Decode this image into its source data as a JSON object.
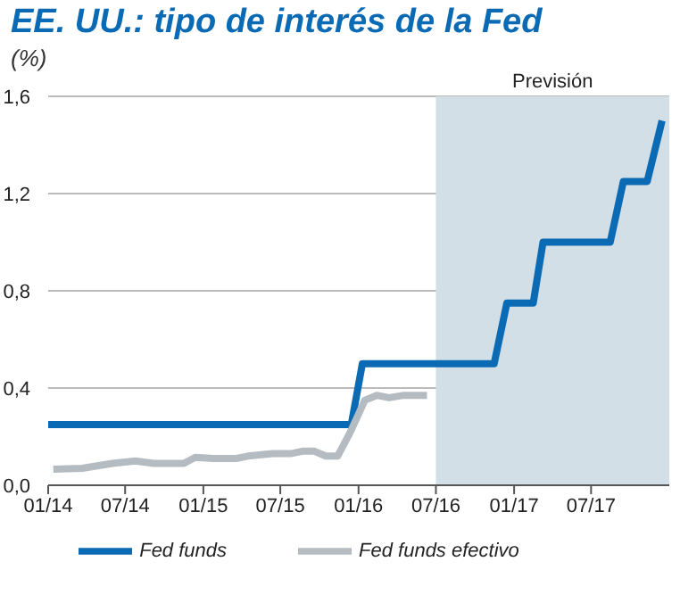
{
  "chart_data": {
    "type": "line",
    "title": "EE. UU.: tipo de interés de la Fed",
    "ylabel": "(%)",
    "xlim": [
      "2014-01",
      "2018-01"
    ],
    "xticks": [
      {
        "value": "2014-01",
        "label": "01/14"
      },
      {
        "value": "2014-07",
        "label": "07/14"
      },
      {
        "value": "2015-01",
        "label": "01/15"
      },
      {
        "value": "2015-07",
        "label": "07/15"
      },
      {
        "value": "2016-01",
        "label": "01/16"
      },
      {
        "value": "2016-07",
        "label": "07/16"
      },
      {
        "value": "2017-01",
        "label": "01/17"
      },
      {
        "value": "2017-07",
        "label": "07/17"
      }
    ],
    "ylim": [
      0,
      1.6
    ],
    "yticks": [
      {
        "value": 0,
        "label": "0,0"
      },
      {
        "value": 0.4,
        "label": "0,4"
      },
      {
        "value": 0.8,
        "label": "0,8"
      },
      {
        "value": 1.2,
        "label": "1,2"
      },
      {
        "value": 1.6,
        "label": "1,6"
      }
    ],
    "grid": "y",
    "legend": "bottom",
    "marker": "none",
    "bands": [
      {
        "axis": "x",
        "from": "2016-07",
        "to": "2018-01",
        "label": "Previsión",
        "color": "#d3dfe7"
      }
    ],
    "series": [
      {
        "name": "Fed funds",
        "color": "#0a6ab4",
        "x": [
          "2014-01-01",
          "2015-12-15",
          "2016-01-10",
          "2016-11-15",
          "2016-12-15",
          "2017-02-15",
          "2017-03-10",
          "2017-08-15",
          "2017-09-15",
          "2017-11-10",
          "2017-12-15"
        ],
        "values": [
          0.25,
          0.25,
          0.5,
          0.5,
          0.75,
          0.75,
          1.0,
          1.0,
          1.25,
          1.25,
          1.5
        ]
      },
      {
        "name": "Fed funds efectivo",
        "color": "#b4bcc2",
        "x": [
          "2014-01-13",
          "2014-03-22",
          "2014-06-01",
          "2014-07-25",
          "2014-09-07",
          "2014-11-16",
          "2014-12-13",
          "2015-01-25",
          "2015-03-19",
          "2015-04-16",
          "2015-06-13",
          "2015-07-25",
          "2015-08-22",
          "2015-09-19",
          "2015-10-16",
          "2015-11-13",
          "2015-12-13",
          "2016-01-16",
          "2016-02-13",
          "2016-03-13",
          "2016-04-16",
          "2016-06-10"
        ],
        "values": [
          0.066,
          0.07,
          0.09,
          0.1,
          0.09,
          0.09,
          0.115,
          0.11,
          0.11,
          0.12,
          0.13,
          0.13,
          0.14,
          0.14,
          0.12,
          0.12,
          0.22,
          0.35,
          0.37,
          0.36,
          0.37,
          0.37
        ]
      }
    ]
  }
}
